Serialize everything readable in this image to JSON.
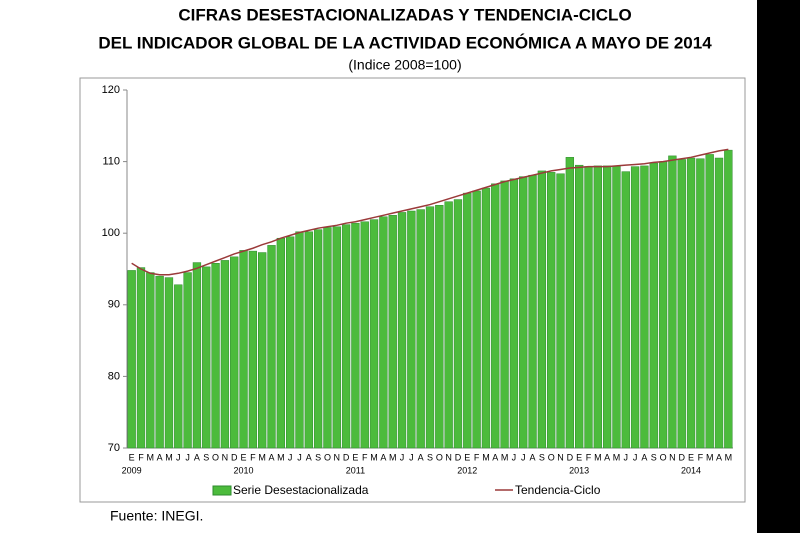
{
  "chart_data": {
    "type": "bar_line",
    "title": "CIFRAS DESESTACIONALIZADAS Y TENDENCIA-CICLO",
    "subtitle_line": "DEL INDICADOR GLOBAL DE LA ACTIVIDAD ECONÓMICA A MAYO DE 2014",
    "subtitle": "(Indice 2008=100)",
    "source": "Fuente: INEGI.",
    "categories": [
      "E",
      "F",
      "M",
      "A",
      "M",
      "J",
      "J",
      "A",
      "S",
      "O",
      "N",
      "D",
      "E",
      "F",
      "M",
      "A",
      "M",
      "J",
      "J",
      "A",
      "S",
      "O",
      "N",
      "D",
      "E",
      "F",
      "M",
      "A",
      "M",
      "J",
      "J",
      "A",
      "S",
      "O",
      "N",
      "D",
      "E",
      "F",
      "M",
      "A",
      "M",
      "J",
      "J",
      "A",
      "S",
      "O",
      "N",
      "D",
      "E",
      "F",
      "M",
      "A",
      "M",
      "J",
      "J",
      "A",
      "S",
      "O",
      "N",
      "D",
      "E",
      "F",
      "M",
      "A",
      "M"
    ],
    "years": [
      "2009",
      "2010",
      "2011",
      "2012",
      "2013",
      "2014"
    ],
    "series": [
      {
        "name": "Serie Desestacionalizada",
        "color": "#4cbb3c",
        "type": "bar",
        "values": [
          94.8,
          95.2,
          94.5,
          94.0,
          93.8,
          92.8,
          94.5,
          95.9,
          95.3,
          95.8,
          96.2,
          96.7,
          97.6,
          97.5,
          97.3,
          98.3,
          99.3,
          99.5,
          100.2,
          100.2,
          100.5,
          100.8,
          100.9,
          101.2,
          101.4,
          101.6,
          101.9,
          102.3,
          102.5,
          102.9,
          103.1,
          103.3,
          103.7,
          103.9,
          104.4,
          104.7,
          105.6,
          105.9,
          106.3,
          106.9,
          107.3,
          107.6,
          107.9,
          108.1,
          108.7,
          108.5,
          108.3,
          110.6,
          109.5,
          109.3,
          109.4,
          109.4,
          109.4,
          108.6,
          109.3,
          109.4,
          109.8,
          110.0,
          110.8,
          110.3,
          110.5,
          110.4,
          111.0,
          110.5,
          111.6
        ]
      },
      {
        "name": "Tendencia-Ciclo",
        "color": "#9b3a3a",
        "type": "line",
        "values": [
          95.8,
          95.0,
          94.4,
          94.2,
          94.2,
          94.4,
          94.7,
          95.1,
          95.6,
          96.1,
          96.6,
          97.1,
          97.5,
          97.9,
          98.4,
          98.8,
          99.3,
          99.7,
          100.1,
          100.4,
          100.7,
          100.9,
          101.1,
          101.4,
          101.6,
          101.9,
          102.2,
          102.5,
          102.8,
          103.1,
          103.4,
          103.7,
          104.0,
          104.4,
          104.8,
          105.2,
          105.6,
          106.0,
          106.4,
          106.8,
          107.2,
          107.5,
          107.8,
          108.1,
          108.4,
          108.7,
          108.9,
          109.1,
          109.2,
          109.3,
          109.3,
          109.3,
          109.4,
          109.5,
          109.6,
          109.7,
          109.9,
          110.0,
          110.2,
          110.4,
          110.6,
          110.9,
          111.2,
          111.5,
          111.7
        ]
      }
    ],
    "ylim": [
      70,
      120
    ],
    "yticks": [
      70,
      80,
      90,
      100,
      110,
      120
    ],
    "grid": false
  }
}
